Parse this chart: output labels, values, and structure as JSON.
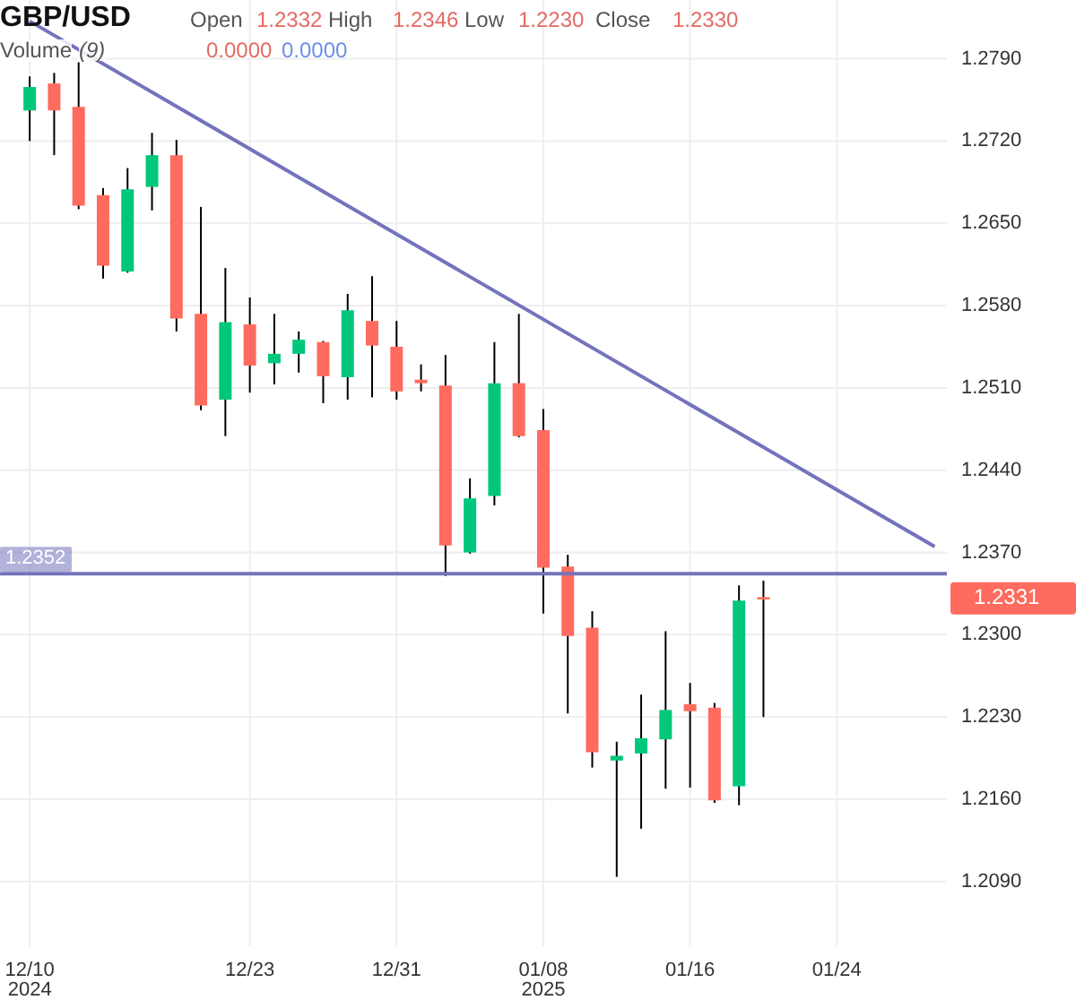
{
  "chart_data": {
    "type": "candlestick",
    "title": "GBP/USD",
    "annotations": [
      "Open",
      "1.2332",
      "High",
      "1.2346",
      "Low",
      "1.2230",
      "Close",
      "1.2330",
      "Volume",
      "(9)",
      "0.0000",
      "0.0000",
      "1.2331"
    ],
    "categories": [
      "12/10\n2024",
      null,
      null,
      null,
      null,
      null,
      null,
      null,
      null,
      "12/23",
      null,
      null,
      null,
      null,
      null,
      "12/31",
      null,
      null,
      null,
      null,
      null,
      "01/08\n2025",
      null,
      null,
      null,
      null,
      null,
      "01/16",
      null,
      null,
      null,
      null,
      null,
      "01/24",
      null,
      null,
      null,
      null
    ],
    "series": [
      {
        "ohlc": [
          [
            1.2746,
            1.2775,
            1.272,
            1.2766
          ],
          [
            1.2769,
            1.2778,
            1.2708,
            1.2746
          ],
          [
            1.2749,
            1.2787,
            1.2662,
            1.2665
          ],
          [
            1.2674,
            1.268,
            1.2603,
            1.2614
          ],
          [
            1.2609,
            1.2697,
            1.2608,
            1.2679
          ],
          [
            1.2681,
            1.2727,
            1.2661,
            1.2708
          ],
          [
            1.2708,
            1.2721,
            1.2558,
            1.2569
          ],
          [
            1.2573,
            1.2664,
            1.2491,
            1.2495
          ],
          [
            1.25,
            1.2612,
            1.2469,
            1.2566
          ],
          [
            1.2564,
            1.2587,
            1.2506,
            1.2529
          ],
          [
            1.2531,
            1.2573,
            1.2513,
            1.2539
          ],
          [
            1.2539,
            1.2558,
            1.2523,
            1.2551
          ],
          [
            1.2549,
            1.255,
            1.2497,
            1.252
          ],
          [
            1.2519,
            1.259,
            1.25,
            1.2576
          ],
          [
            1.2567,
            1.2605,
            1.2502,
            1.2546
          ],
          [
            1.2545,
            1.2567,
            1.25,
            1.2507
          ],
          [
            1.2517,
            1.253,
            1.2507,
            1.2514
          ],
          [
            1.2512,
            1.2538,
            1.235,
            1.2376
          ],
          [
            1.237,
            1.2433,
            1.2369,
            1.2416
          ],
          [
            1.2418,
            1.2549,
            1.241,
            1.2514
          ],
          [
            1.2514,
            1.2573,
            1.2468,
            1.2469
          ],
          [
            1.2474,
            1.2492,
            1.2318,
            1.2357
          ],
          [
            1.2358,
            1.2368,
            1.2233,
            1.2299
          ],
          [
            1.2306,
            1.232,
            1.2187,
            1.22
          ],
          [
            1.2193,
            1.2209,
            1.2094,
            1.2197
          ],
          [
            1.2199,
            1.2249,
            1.2135,
            1.2212
          ],
          [
            1.2211,
            1.2303,
            1.2169,
            1.2236
          ],
          [
            1.2241,
            1.2259,
            1.217,
            1.2235
          ],
          [
            1.2238,
            1.2242,
            1.2157,
            1.2159
          ],
          [
            1.2171,
            1.2342,
            1.2155,
            1.2329
          ],
          [
            1.2332,
            1.2346,
            1.223,
            1.233
          ],
          null,
          null,
          null,
          null,
          null,
          null,
          null
        ],
        "colors": [
          "#00c77b",
          "#ff6b5f",
          "#ff6b5f",
          "#ff6b5f",
          "#00c77b",
          "#00c77b",
          "#ff6b5f",
          "#ff6b5f",
          "#00c77b",
          "#ff6b5f",
          "#00c77b",
          "#00c77b",
          "#ff6b5f",
          "#00c77b",
          "#ff6b5f",
          "#ff6b5f",
          "#ff6b5f",
          "#ff6b5f",
          "#00c77b",
          "#00c77b",
          "#ff6b5f",
          "#ff6b5f",
          "#ff6b5f",
          "#ff6b5f",
          "#00c77b",
          "#00c77b",
          "#00c77b",
          "#ff6b5f",
          "#ff6b5f",
          "#00c77b",
          "#ff6b5f",
          null,
          null,
          null,
          null,
          null,
          null,
          null
        ]
      },
      {
        "type": "line",
        "color": "#7373bd",
        "values": [
          1.2822,
          null,
          null,
          null,
          null,
          null,
          null,
          null,
          null,
          null,
          null,
          null,
          null,
          null,
          null,
          null,
          null,
          null,
          null,
          null,
          null,
          null,
          null,
          null,
          null,
          null,
          null,
          null,
          null,
          null,
          null,
          null,
          null,
          null,
          null,
          null,
          null,
          1.2375
        ]
      }
    ],
    "ylim": [
      1.2035,
      1.284
    ],
    "yticks": [
      {
        "value": 1.209,
        "label": "1.2090"
      },
      {
        "value": 1.216,
        "label": "1.2160"
      },
      {
        "value": 1.223,
        "label": "1.2230"
      },
      {
        "value": 1.23,
        "label": "1.2300"
      },
      {
        "value": 1.237,
        "label": "1.2370"
      },
      {
        "value": 1.244,
        "label": "1.2440"
      },
      {
        "value": 1.251,
        "label": "1.2510"
      },
      {
        "value": 1.258,
        "label": "1.2580"
      },
      {
        "value": 1.265,
        "label": "1.2650"
      },
      {
        "value": 1.272,
        "label": "1.2720"
      },
      {
        "value": 1.279,
        "label": "1.2790"
      }
    ],
    "ref_lines": [
      {
        "axis": "y",
        "value": 1.2352,
        "label": "1.2352",
        "color": "#7373bd"
      }
    ],
    "grid": true
  }
}
